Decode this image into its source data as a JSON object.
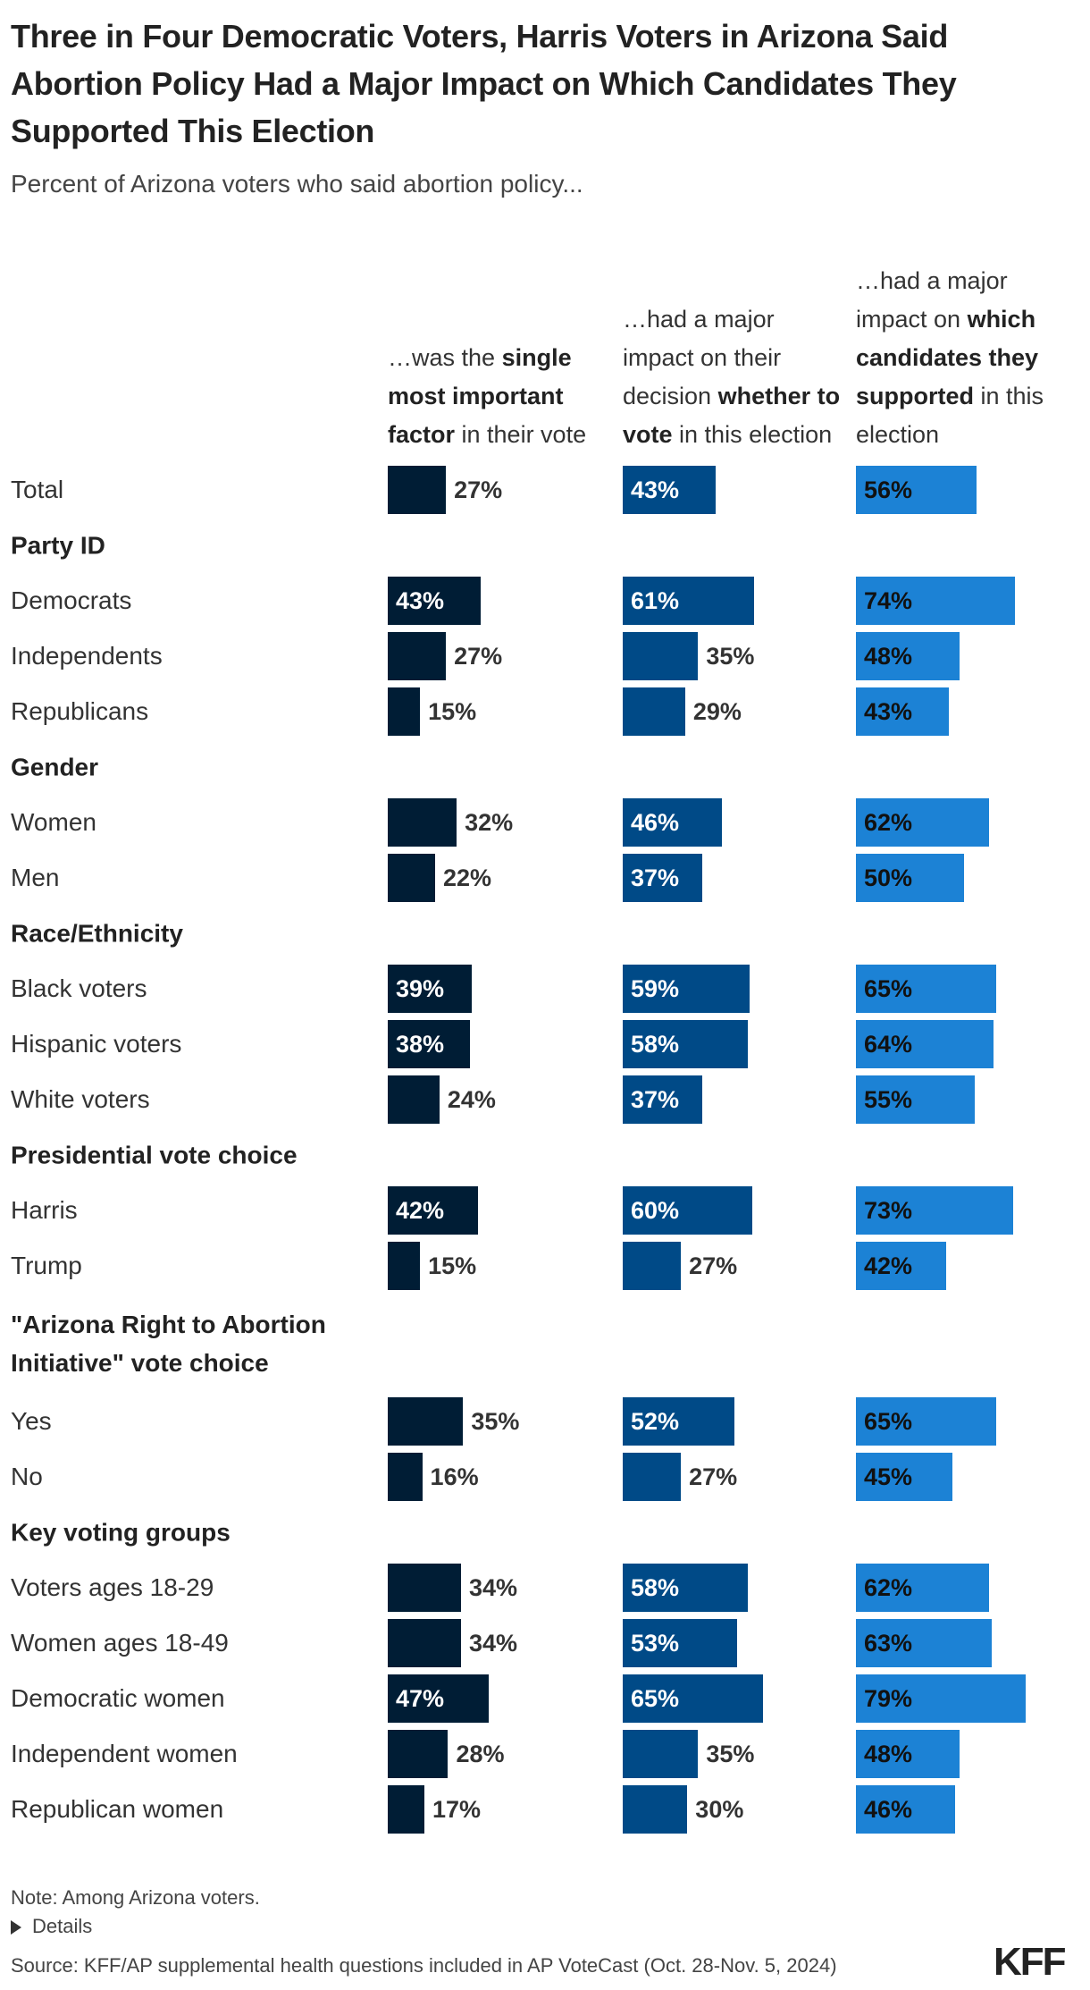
{
  "title": "Three in Four Democratic Voters, Harris Voters in Arizona Said Abortion Policy Had a Major Impact on Which Candidates They Supported This Election",
  "subtitle": "Percent of Arizona voters who said abortion policy...",
  "note": "Note: Among Arizona voters.",
  "details_label": "Details",
  "source": "Source: KFF/AP supplemental health questions included in AP VoteCast (Oct. 28-Nov. 5, 2024)",
  "logo": "KFF",
  "colors": {
    "col1": "#001d35",
    "col2": "#004a87",
    "col3": "#1c82d5"
  },
  "chart_data": {
    "type": "bar",
    "orientation": "horizontal",
    "unit": "%",
    "xlim": [
      0,
      100
    ],
    "series": [
      {
        "header": [
          {
            "t": "…was the ",
            "b": false
          },
          {
            "t": "single most important factor",
            "b": true
          },
          {
            "t": " in their vote",
            "b": false
          }
        ],
        "color": "#001d35"
      },
      {
        "header": [
          {
            "t": "…had a major impact on their decision ",
            "b": false
          },
          {
            "t": "whether to vote",
            "b": true
          },
          {
            "t": " in this election",
            "b": false
          }
        ],
        "color": "#004a87"
      },
      {
        "header": [
          {
            "t": "…had a major impact on ",
            "b": false
          },
          {
            "t": "which candidates they supported",
            "b": true
          },
          {
            "t": " in this election",
            "b": false
          }
        ],
        "color": "#1c82d5"
      }
    ],
    "rows": [
      {
        "label": "Total",
        "values": [
          27,
          43,
          56
        ]
      },
      {
        "heading": "Party ID"
      },
      {
        "label": "Democrats",
        "values": [
          43,
          61,
          74
        ]
      },
      {
        "label": "Independents",
        "values": [
          27,
          35,
          48
        ]
      },
      {
        "label": "Republicans",
        "values": [
          15,
          29,
          43
        ]
      },
      {
        "heading": "Gender"
      },
      {
        "label": "Women",
        "values": [
          32,
          46,
          62
        ]
      },
      {
        "label": "Men",
        "values": [
          22,
          37,
          50
        ]
      },
      {
        "heading": "Race/Ethnicity"
      },
      {
        "label": "Black voters",
        "values": [
          39,
          59,
          65
        ]
      },
      {
        "label": "Hispanic voters",
        "values": [
          38,
          58,
          64
        ]
      },
      {
        "label": "White voters",
        "values": [
          24,
          37,
          55
        ]
      },
      {
        "heading": "Presidential vote choice"
      },
      {
        "label": "Harris",
        "values": [
          42,
          60,
          73
        ]
      },
      {
        "label": "Trump",
        "values": [
          15,
          27,
          42
        ]
      },
      {
        "heading": "\"Arizona Right to Abortion Initiative\" vote choice",
        "two_line": true
      },
      {
        "label": "Yes",
        "values": [
          35,
          52,
          65
        ]
      },
      {
        "label": "No",
        "values": [
          16,
          27,
          45
        ]
      },
      {
        "heading": "Key voting groups"
      },
      {
        "label": "Voters ages 18-29",
        "values": [
          34,
          58,
          62
        ]
      },
      {
        "label": "Women ages 18-49",
        "values": [
          34,
          53,
          63
        ]
      },
      {
        "label": "Democratic women",
        "values": [
          47,
          65,
          79
        ]
      },
      {
        "label": "Independent women",
        "values": [
          28,
          35,
          48
        ]
      },
      {
        "label": "Republican women",
        "values": [
          17,
          30,
          46
        ]
      }
    ]
  }
}
